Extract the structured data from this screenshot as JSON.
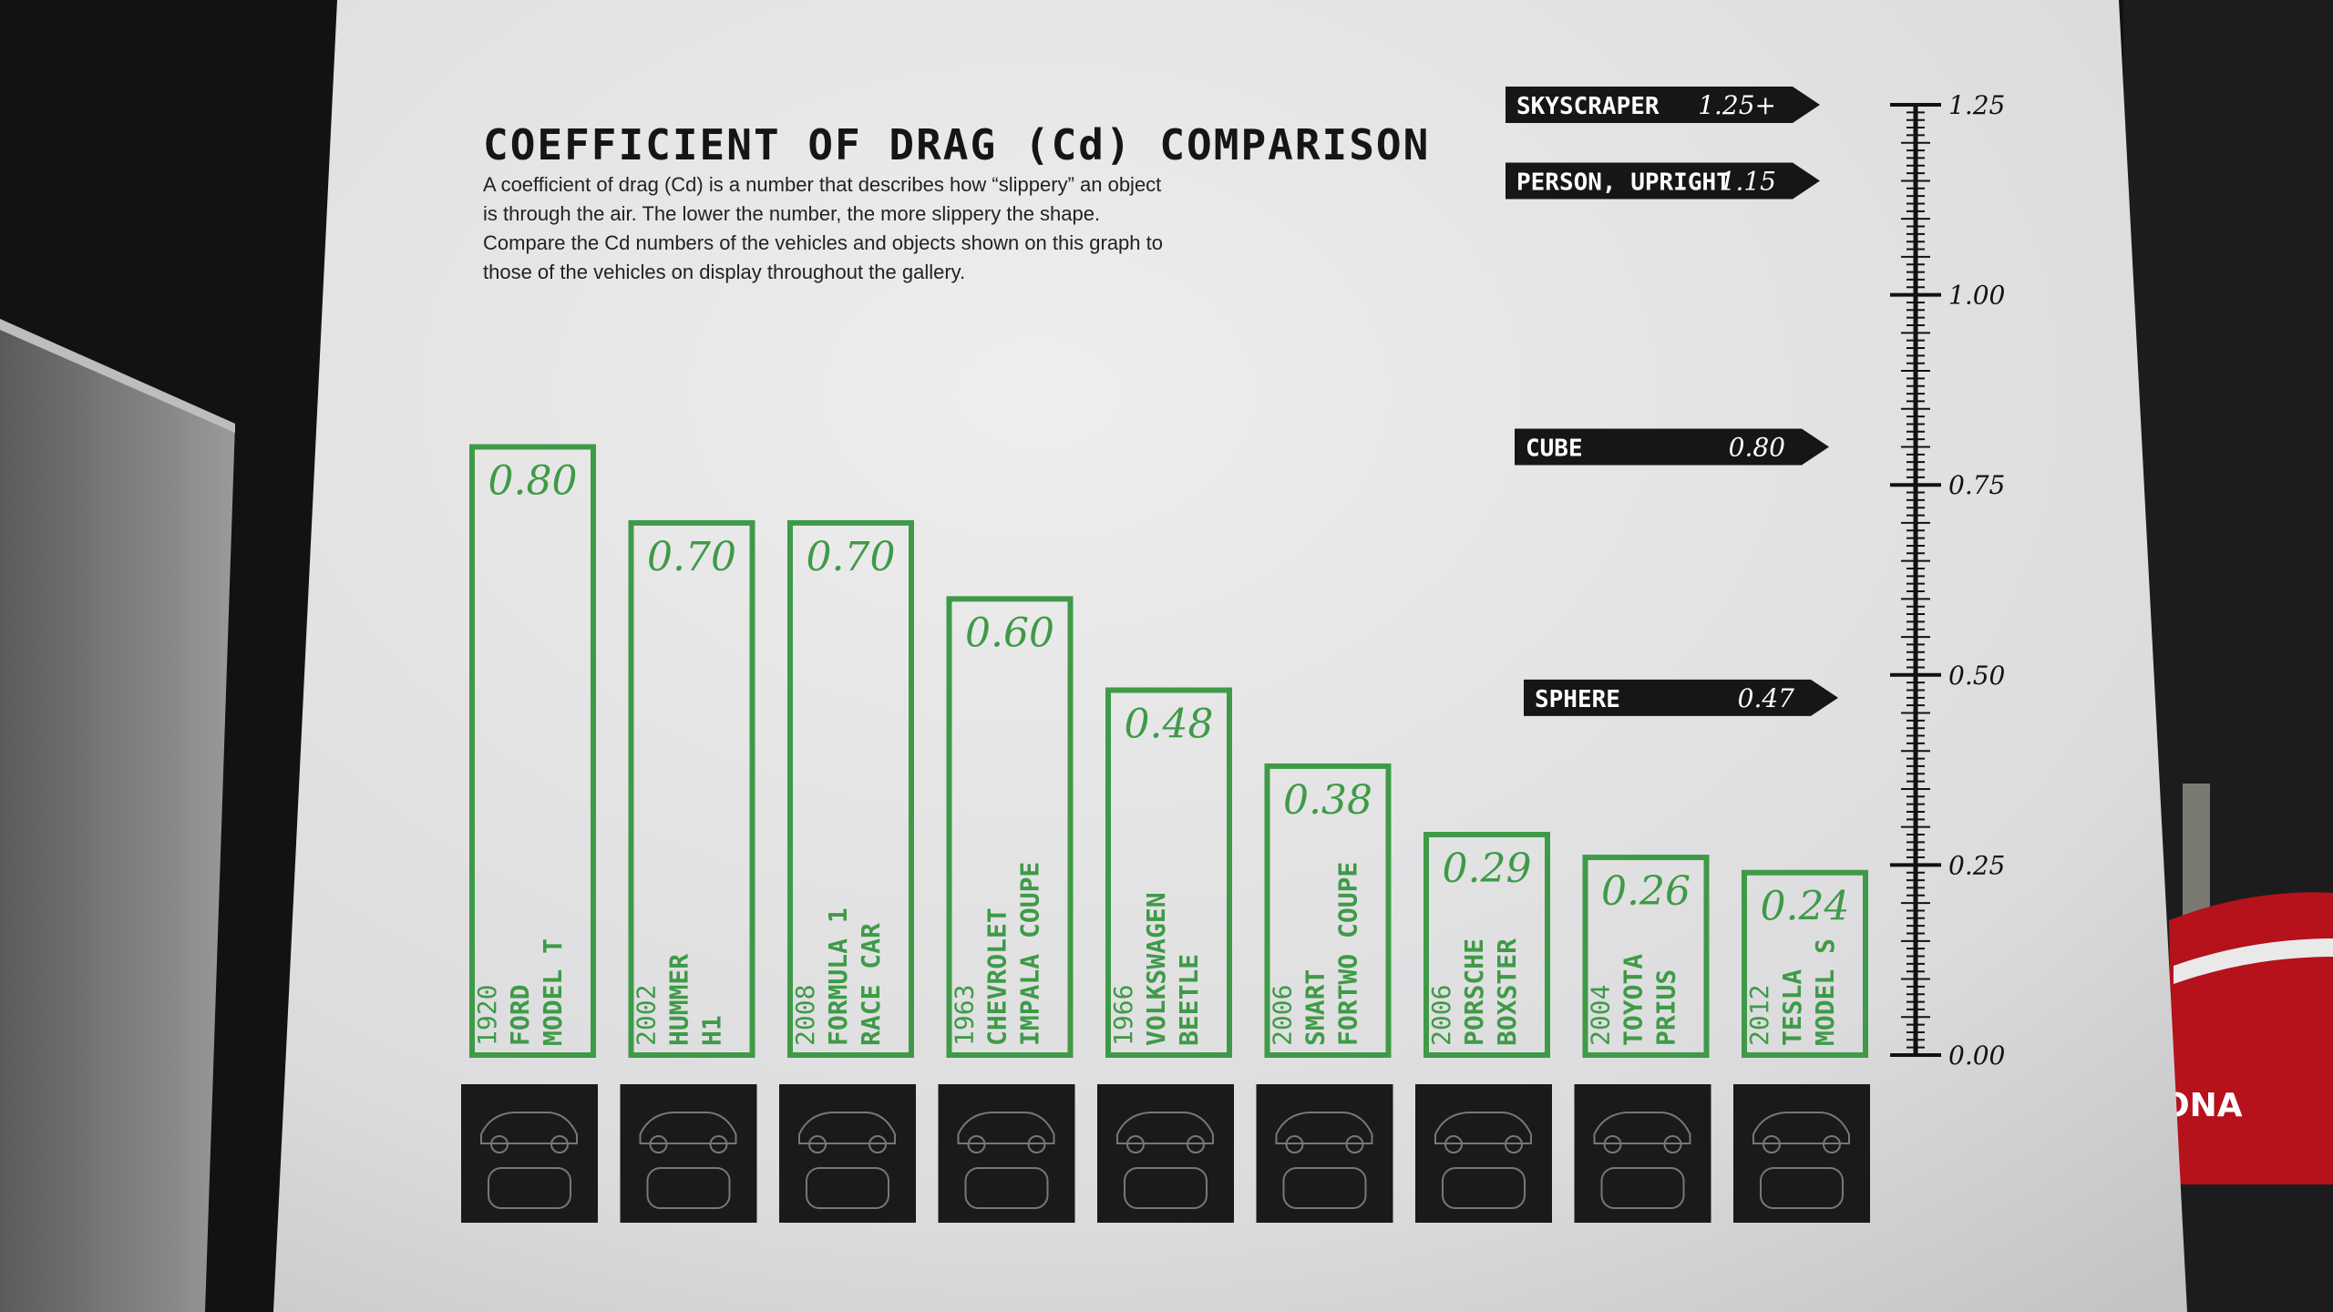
{
  "exhibit": {
    "title": "COEFFICIENT OF DRAG (Cd) COMPARISON",
    "description": [
      "A coefficient of drag (Cd) is a number that describes how “slippery” an object",
      "is through the air. The lower the number, the more slippery the shape.",
      "Compare the Cd numbers of the vehicles and objects shown on this graph to",
      "those of the vehicles on display throughout the gallery."
    ]
  },
  "colors": {
    "bar_outline": "#3f9a47",
    "pointer_fill": "#161616",
    "wall": "#e4e4e4",
    "scale_ink": "#111111",
    "thumb_fill": "#1a1a1a"
  },
  "chart_data": {
    "type": "bar",
    "title": "COEFFICIENT OF DRAG (Cd) COMPARISON",
    "ylim": [
      0,
      1.25
    ],
    "grid": false,
    "categories": [
      {
        "year": "1920",
        "name": [
          "FORD",
          "MODEL T"
        ],
        "value": 0.8,
        "label": "0.80"
      },
      {
        "year": "2002",
        "name": [
          "HUMMER",
          "H1"
        ],
        "value": 0.7,
        "label": "0.70"
      },
      {
        "year": "2008",
        "name": [
          "FORMULA 1",
          "RACE CAR"
        ],
        "value": 0.7,
        "label": "0.70"
      },
      {
        "year": "1963",
        "name": [
          "CHEVROLET",
          "IMPALA COUPE"
        ],
        "value": 0.6,
        "label": "0.60"
      },
      {
        "year": "1966",
        "name": [
          "VOLKSWAGEN",
          "BEETLE"
        ],
        "value": 0.48,
        "label": "0.48"
      },
      {
        "year": "2006",
        "name": [
          "SMART",
          "FORTWO COUPE"
        ],
        "value": 0.38,
        "label": "0.38"
      },
      {
        "year": "2006",
        "name": [
          "PORSCHE",
          "BOXSTER"
        ],
        "value": 0.29,
        "label": "0.29"
      },
      {
        "year": "2004",
        "name": [
          "TOYOTA",
          "PRIUS"
        ],
        "value": 0.26,
        "label": "0.26"
      },
      {
        "year": "2012",
        "name": [
          "TESLA",
          "MODEL S"
        ],
        "value": 0.24,
        "label": "0.24"
      }
    ],
    "markers": [
      {
        "name": "SKYSCRAPER",
        "value": 1.25,
        "label": "1.25+"
      },
      {
        "name": "PERSON, UPRIGHT",
        "value": 1.15,
        "label": "1.15"
      },
      {
        "name": "CUBE",
        "value": 0.8,
        "label": "0.80"
      },
      {
        "name": "SPHERE",
        "value": 0.47,
        "label": "0.47"
      }
    ],
    "y_ticks": [
      {
        "value": 1.25,
        "label": "1.25"
      },
      {
        "value": 1.0,
        "label": "1.00"
      },
      {
        "value": 0.75,
        "label": "0.75"
      },
      {
        "value": 0.5,
        "label": "0.50"
      },
      {
        "value": 0.25,
        "label": "0.25"
      },
      {
        "value": 0.0,
        "label": "0.00"
      }
    ]
  },
  "background_sign_fragment": "ONA"
}
